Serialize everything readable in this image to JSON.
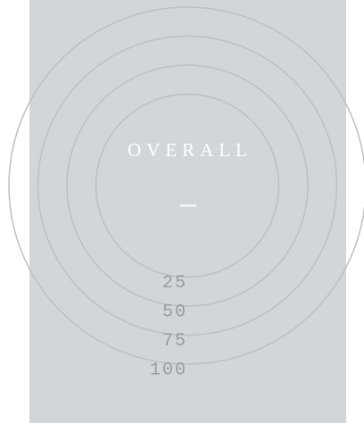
{
  "chart_data": {
    "type": "radial",
    "title": "OVERALL",
    "center_label": "—",
    "rlim": [
      0,
      100
    ],
    "rticks": [
      25,
      50,
      75,
      100
    ],
    "grid": true,
    "grid_color": "#bdbfc2",
    "background": "#d3d6d9"
  }
}
